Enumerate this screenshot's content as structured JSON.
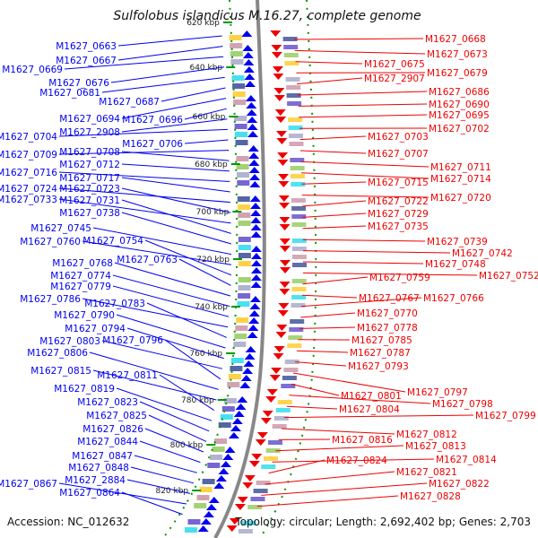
{
  "title": "Sulfolobus islandicus M.16.27, complete genome",
  "accession": "Accession: NC_012632",
  "footer_stats": "Topology: circular; Length: 2,692,402 bp; Genes: 2,703",
  "colors": {
    "forward": "#0000ee",
    "reverse": "#ee0000",
    "backbone": "#888888",
    "ticks": "#009900",
    "ribbon_cyan": "#33ddee",
    "ribbon_purple": "#6655cc"
  },
  "kbp_ticks": [
    "620 kbp",
    "640 kbp",
    "660 kbp",
    "680 kbp",
    "700 kbp",
    "720 kbp",
    "740 kbp",
    "760 kbp",
    "780 kbp",
    "800 kbp",
    "820 kbp"
  ],
  "forward_labels": [
    "M1627_0663",
    "M1627_0667",
    "M1627_0669",
    "M1627_0676",
    "M1627_0681",
    "M1627_0687",
    "M1627_0694",
    "M1627_0696",
    "M1627_2908",
    "M1627_0704",
    "M1627_0706",
    "M1627_0709",
    "M1627_0708",
    "M1627_0712",
    "M1627_0716",
    "M1627_0717",
    "M1627_0724",
    "M1627_0723",
    "M1627_0733",
    "M1627_0731",
    "M1627_0738",
    "M1627_0745",
    "M1627_0760",
    "M1627_0754",
    "M1627_0763",
    "M1627_0768",
    "M1627_0774",
    "M1627_0779",
    "M1627_0786",
    "M1627_0783",
    "M1627_0790",
    "M1627_0794",
    "M1627_0803",
    "M1627_0796",
    "M1627_0806",
    "M1627_0815",
    "M1627_0811",
    "M1627_0819",
    "M1627_0823",
    "M1627_0825",
    "M1627_0826",
    "M1627_0844",
    "M1627_0847",
    "M1627_0848",
    "M1627_2884",
    "M1627_0867",
    "M1627_0864"
  ],
  "reverse_labels": [
    "M1627_0668",
    "M1627_0673",
    "M1627_0675",
    "M1627_0679",
    "M1627_2907",
    "M1627_0686",
    "M1627_0690",
    "M1627_0695",
    "M1627_0702",
    "M1627_0703",
    "M1627_0707",
    "M1627_0711",
    "M1627_0714",
    "M1627_0715",
    "M1627_0720",
    "M1627_0722",
    "M1627_0729",
    "M1627_0735",
    "M1627_0739",
    "M1627_0742",
    "M1627_0748",
    "M1627_0752",
    "M1627_0759",
    "M1627_0767",
    "M1627_0766",
    "M1627_0770",
    "M1627_0778",
    "M1627_0785",
    "M1627_0787",
    "M1627_0793",
    "M1627_0797",
    "M1627_0801",
    "M1627_0798",
    "M1627_0804",
    "M1627_0799",
    "M1627_0812",
    "M1627_0816",
    "M1627_0813",
    "M1627_0814",
    "M1627_0824",
    "M1627_0821",
    "M1627_0822",
    "M1627_0828"
  ]
}
